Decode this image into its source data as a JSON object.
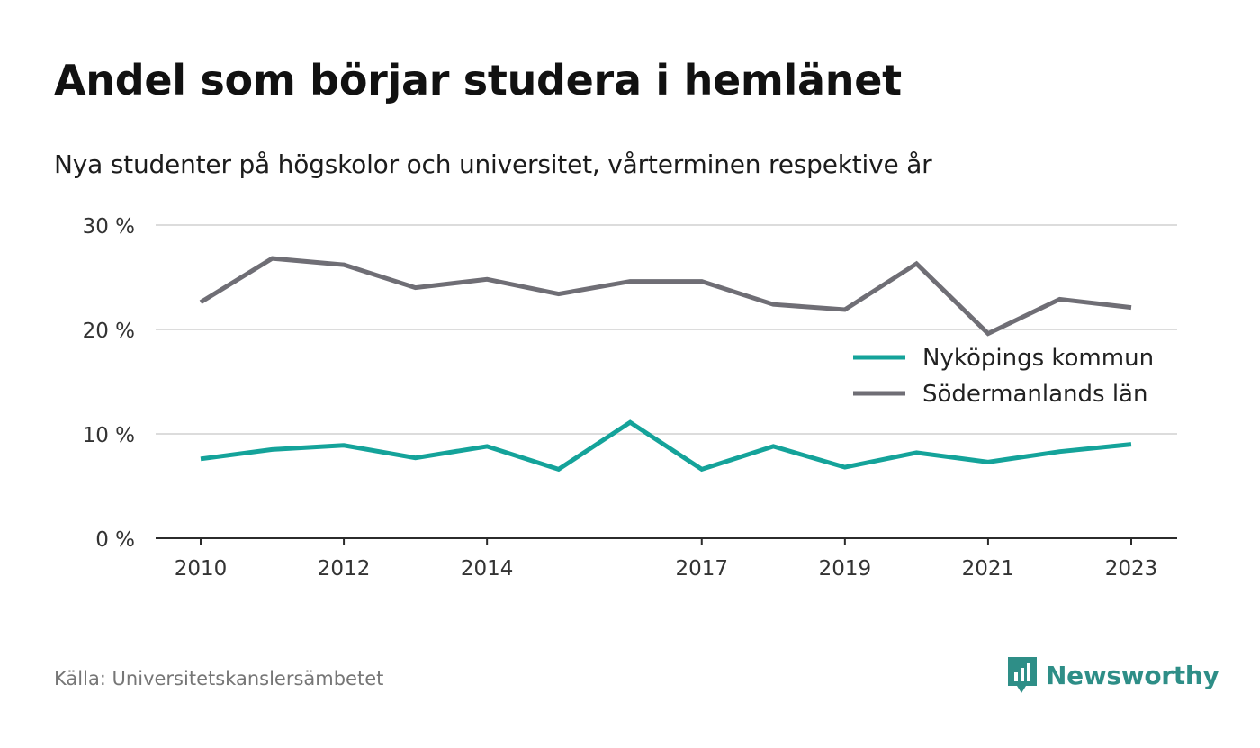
{
  "title": "Andel som börjar studera i hemlänet",
  "subtitle": "Nya studenter på högskolor och universitet, vårterminen respektive år",
  "source": "Källa: Universitetskanslersämbetet",
  "brand": "Newsworthy",
  "colors": {
    "nykoping": "#14a39a",
    "sodermanland": "#6f6e75",
    "grid": "#dcdcdc",
    "axis": "#2b2b2b",
    "brand": "#2e8e87"
  },
  "chart_data": {
    "type": "line",
    "x": [
      2010,
      2011,
      2012,
      2013,
      2014,
      2015,
      2016,
      2017,
      2018,
      2019,
      2020,
      2021,
      2022,
      2023
    ],
    "x_tick_labels": [
      "2010",
      "2012",
      "2014",
      "2017",
      "2019",
      "2021",
      "2023"
    ],
    "y_ticks": [
      0,
      10,
      20,
      30
    ],
    "y_tick_labels": [
      "0 %",
      "10 %",
      "20 %",
      "30 %"
    ],
    "ylim": [
      0,
      30
    ],
    "grid": true,
    "legend_position": "right",
    "series": [
      {
        "name": "Nyköpings kommun",
        "color": "#14a39a",
        "values": [
          7.6,
          8.5,
          8.9,
          7.7,
          8.8,
          6.6,
          11.1,
          6.6,
          8.8,
          6.8,
          8.2,
          7.3,
          8.3,
          9.0
        ]
      },
      {
        "name": "Södermanlands län",
        "color": "#6f6e75",
        "values": [
          22.6,
          26.8,
          26.2,
          24.0,
          24.8,
          23.4,
          24.6,
          24.6,
          22.4,
          21.9,
          26.3,
          19.6,
          22.9,
          22.1
        ]
      }
    ]
  }
}
